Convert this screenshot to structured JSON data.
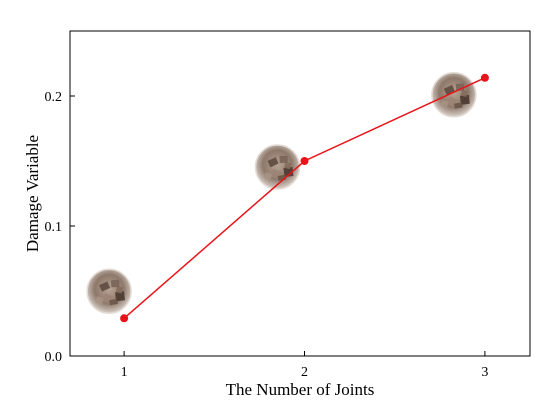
{
  "chart_data": {
    "type": "line",
    "x": [
      1,
      2,
      3
    ],
    "series": [
      {
        "values": [
          0.029,
          0.15,
          0.214
        ],
        "color": "#e8141a"
      }
    ],
    "xlabel": "The Number of Joints",
    "ylabel": "Damage Variable",
    "xlim": [
      0.7,
      3.25
    ],
    "ylim": [
      0.0,
      0.25
    ],
    "xticks": [
      1,
      2,
      3
    ],
    "xtick_labels": [
      "1",
      "2",
      "3"
    ],
    "yticks": [
      0.0,
      0.1,
      0.2
    ],
    "ytick_labels": [
      "0.0",
      "0.1",
      "0.2"
    ],
    "grid": false,
    "legend": "none",
    "annotations": [
      {
        "type": "image",
        "depicts": "circular photo of fragmented rock sample",
        "near_x": 1
      },
      {
        "type": "image",
        "depicts": "circular photo of fragmented rock sample",
        "near_x": 2
      },
      {
        "type": "image",
        "depicts": "circular photo of fragmented rock sample",
        "near_x": 3
      }
    ]
  }
}
